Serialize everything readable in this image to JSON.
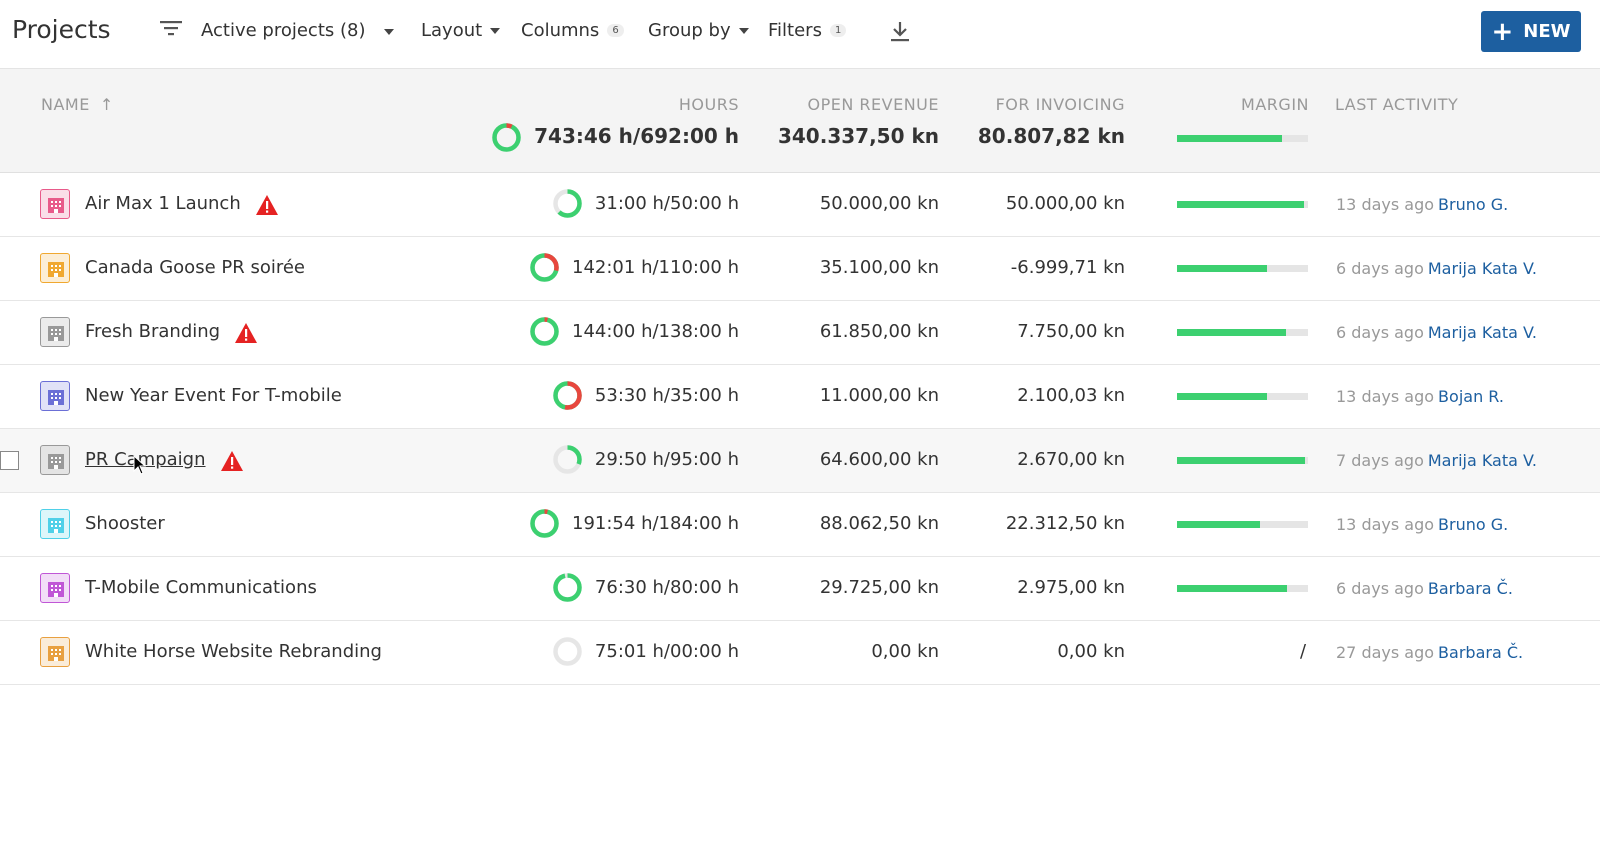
{
  "toolbar": {
    "title": "Projects",
    "view_label": "Active projects (8)",
    "layout_label": "Layout",
    "columns_label": "Columns",
    "columns_count": "6",
    "groupby_label": "Group by",
    "filters_label": "Filters",
    "filters_count": "1",
    "new_label": "NEW"
  },
  "colors": {
    "accent": "#1d5fa0",
    "success": "#3cd070",
    "danger": "#e8473e",
    "warning": "#e52222"
  },
  "columns": {
    "name": "NAME",
    "hours": "HOURS",
    "open_revenue": "OPEN REVENUE",
    "for_invoicing": "FOR INVOICING",
    "margin": "MARGIN",
    "last_activity": "LAST ACTIVITY"
  },
  "totals": {
    "hours": "743:46 h/692:00 h",
    "hours_progress": 1.07,
    "open_revenue": "340.337,50 kn",
    "for_invoicing": "80.807,82 kn",
    "margin": 0.8
  },
  "rows": [
    {
      "name": "Air Max 1 Launch",
      "icon_color": "#e85a8a",
      "warning": true,
      "hours": "31:00 h/50:00 h",
      "hours_progress": 0.62,
      "open_revenue": "50.000,00 kn",
      "for_invoicing": "50.000,00 kn",
      "margin": 0.97,
      "ago": "13 days ago",
      "user": "Bruno G."
    },
    {
      "name": "Canada Goose PR soirée",
      "icon_color": "#f0a830",
      "warning": false,
      "hours": "142:01 h/110:00 h",
      "hours_progress": 1.29,
      "open_revenue": "35.100,00 kn",
      "for_invoicing": "-6.999,71 kn",
      "margin": 0.69,
      "ago": "6 days ago",
      "user": "Marija Kata V."
    },
    {
      "name": "Fresh Branding",
      "icon_color": "#999999",
      "warning": true,
      "hours": "144:00 h/138:00 h",
      "hours_progress": 1.04,
      "open_revenue": "61.850,00 kn",
      "for_invoicing": "7.750,00 kn",
      "margin": 0.83,
      "ago": "6 days ago",
      "user": "Marija Kata V."
    },
    {
      "name": "New Year Event For T-mobile",
      "icon_color": "#6b6fd6",
      "warning": false,
      "hours": "53:30 h/35:00 h",
      "hours_progress": 1.53,
      "open_revenue": "11.000,00 kn",
      "for_invoicing": "2.100,03 kn",
      "margin": 0.69,
      "ago": "13 days ago",
      "user": "Bojan R."
    },
    {
      "name": "PR Campaign",
      "icon_color": "#999999",
      "warning": true,
      "hours": "29:50 h/95:00 h",
      "hours_progress": 0.31,
      "open_revenue": "64.600,00 kn",
      "for_invoicing": "2.670,00 kn",
      "margin": 0.98,
      "ago": "7 days ago",
      "user": "Marija Kata V."
    },
    {
      "name": "Shooster",
      "icon_color": "#4fd0e8",
      "warning": false,
      "hours": "191:54 h/184:00 h",
      "hours_progress": 1.04,
      "open_revenue": "88.062,50 kn",
      "for_invoicing": "22.312,50 kn",
      "margin": 0.63,
      "ago": "13 days ago",
      "user": "Bruno G."
    },
    {
      "name": "T-Mobile Communications",
      "icon_color": "#c056d6",
      "warning": false,
      "hours": "76:30 h/80:00 h",
      "hours_progress": 0.96,
      "open_revenue": "29.725,00 kn",
      "for_invoicing": "2.975,00 kn",
      "margin": 0.84,
      "ago": "6 days ago",
      "user": "Barbara Č."
    },
    {
      "name": "White Horse Website Rebranding",
      "icon_color": "#e8a040",
      "warning": false,
      "hours": "75:01 h/00:00 h",
      "hours_progress": 0,
      "open_revenue": "0,00 kn",
      "for_invoicing": "0,00 kn",
      "margin": null,
      "margin_text": "/",
      "ago": "27 days ago",
      "user": "Barbara Č."
    }
  ]
}
